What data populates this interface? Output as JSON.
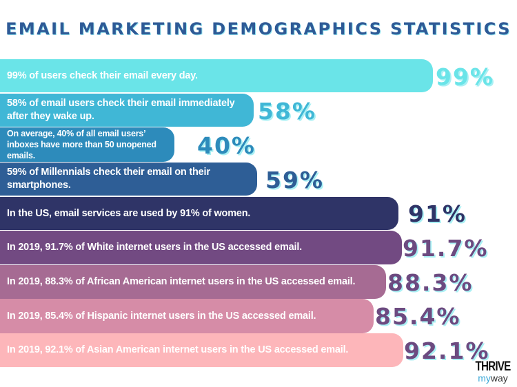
{
  "chart_data": {
    "type": "bar",
    "orientation": "horizontal",
    "title": "EMAIL MARKETING DEMOGRAPHICS STATISTICS",
    "unit": "%",
    "items": [
      {
        "text": "99% of users check their email every day.",
        "value": 99,
        "label": "99%",
        "bar_color": "#6ae4e8",
        "label_color": "#6ae4e8"
      },
      {
        "text": "58% of email users check their email immediately after they wake up.",
        "value": 58,
        "label": "58%",
        "bar_color": "#40b7d6",
        "label_color": "#40b7d6"
      },
      {
        "text": "On average, 40% of all email users’ inboxes have more than 50 unopened emails.",
        "value": 40,
        "label": "40%",
        "bar_color": "#2d8bbb",
        "label_color": "#2d8bbb"
      },
      {
        "text": "59% of Millennials check their email on their smartphones.",
        "value": 59,
        "label": "59%",
        "bar_color": "#2e5e96",
        "label_color": "#2e5e96"
      },
      {
        "text": "In the US, email services are used by 91% of women.",
        "value": 91,
        "label": "91%",
        "bar_color": "#2f3467",
        "label_color": "#2f3467"
      },
      {
        "text": "In 2019, 91.7% of White internet users in the US accessed email.",
        "value": 91.7,
        "label": "91.7%",
        "bar_color": "#724a82",
        "label_color": "#6c4a80"
      },
      {
        "text": "In 2019, 88.3% of African American internet users in the US accessed email.",
        "value": 88.3,
        "label": "88.3%",
        "bar_color": "#a66b93",
        "label_color": "#6c4a80"
      },
      {
        "text": "In 2019, 85.4% of Hispanic internet users in the US accessed email.",
        "value": 85.4,
        "label": "85.4%",
        "bar_color": "#d68ca7",
        "label_color": "#6c4a80"
      },
      {
        "text": "In 2019, 92.1% of Asian American internet users in the US accessed email.",
        "value": 92.1,
        "label": "92.1%",
        "bar_color": "#fdb6ba",
        "label_color": "#6c4a80"
      }
    ]
  },
  "logo": {
    "top": "THRIVE",
    "my": "my",
    "way": "way"
  }
}
